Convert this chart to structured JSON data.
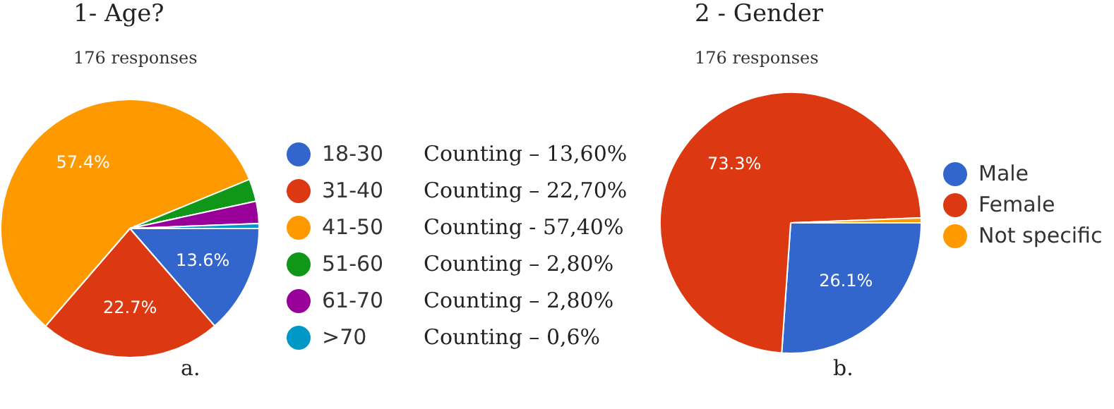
{
  "chart_data": [
    {
      "type": "pie",
      "title": "1- Age?",
      "subtitle": "176 responses",
      "categories": [
        "18-30",
        "31-40",
        "41-50",
        "51-60",
        "61-70",
        ">70"
      ],
      "values": [
        13.6,
        22.7,
        57.4,
        2.8,
        2.8,
        0.6
      ],
      "colors": [
        "#3366cc",
        "#dc3912",
        "#ff9900",
        "#109618",
        "#990099",
        "#0099c6"
      ],
      "value_labels": [
        "13.6%",
        "22.7%",
        "57.4%",
        null,
        null,
        null
      ],
      "legend": "right",
      "annotations": [
        "Counting – 13,60%",
        "Counting – 22,70%",
        "Counting - 57,40%",
        "Counting – 2,80%",
        "Counting – 2,80%",
        "Counting – 0,6%",
        "a."
      ]
    },
    {
      "type": "pie",
      "title": "2 - Gender",
      "subtitle": "176 responses",
      "categories": [
        "Male",
        "Female",
        "Not specific"
      ],
      "values": [
        26.1,
        73.3,
        0.6
      ],
      "colors": [
        "#3366cc",
        "#dc3912",
        "#ff9900"
      ],
      "value_labels": [
        "26.1%",
        "73.3%",
        null
      ],
      "legend": "right",
      "annotations": [
        "b."
      ]
    }
  ]
}
